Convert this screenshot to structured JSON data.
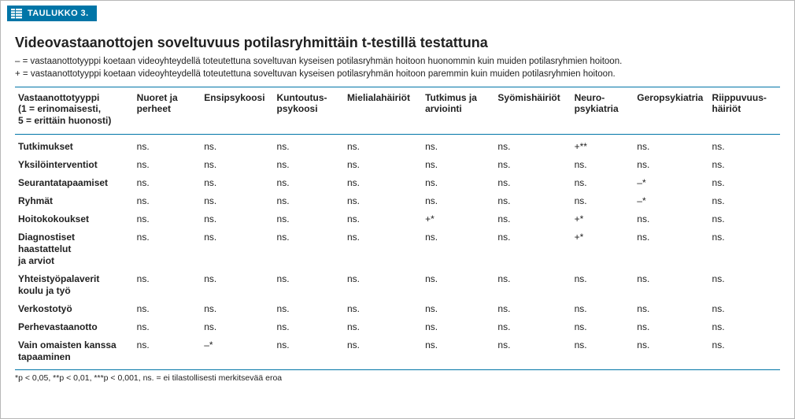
{
  "colors": {
    "brand": "#0075a7",
    "text": "#222222",
    "border": "#b8b8b8",
    "background": "#ffffff"
  },
  "badge": {
    "label": "TAULUKKO 3."
  },
  "title": "Videovastaanottojen soveltuvuus potilasryhmittäin t-testillä testattuna",
  "legend": {
    "minus": "– = vastaanottotyyppi koetaan videoyhteydellä toteutettuna soveltuvan kyseisen potilasryhmän hoitoon huonommin kuin muiden potilasryhmien hoitoon.",
    "plus": "+ = vastaanottotyyppi koetaan videoyhteydellä toteutettuna soveltuvan kyseisen potilasryhmän hoitoon paremmin kuin muiden potilasryhmien hoitoon."
  },
  "table": {
    "columns": [
      "Vastaanottotyyppi\n(1 = erinomaisesti,\n5 = erittäin huonosti)",
      "Nuoret ja\nperheet",
      "Ensipsykoosi",
      "Kuntoutus-\npsykoosi",
      "Mielialahäiriöt",
      "Tutkimus ja\narviointi",
      "Syömishäiriöt",
      "Neuro-\npsykiatria",
      "Geropsykiatria",
      "Riippuvuus-\nhäiriöt"
    ],
    "rows": [
      {
        "label": "Tutkimukset",
        "cells": [
          "ns.",
          "ns.",
          "ns.",
          "ns.",
          "ns.",
          "ns.",
          "+**",
          "ns.",
          "ns."
        ]
      },
      {
        "label": "Yksilöinterventiot",
        "cells": [
          "ns.",
          "ns.",
          "ns.",
          "ns.",
          "ns.",
          "ns.",
          "ns.",
          "ns.",
          "ns."
        ]
      },
      {
        "label": "Seurantatapaamiset",
        "cells": [
          "ns.",
          "ns.",
          "ns.",
          "ns.",
          "ns.",
          "ns.",
          "ns.",
          "–*",
          "ns."
        ]
      },
      {
        "label": "Ryhmät",
        "cells": [
          "ns.",
          "ns.",
          "ns.",
          "ns.",
          "ns.",
          "ns.",
          "ns.",
          "–*",
          "ns."
        ]
      },
      {
        "label": "Hoitokokoukset",
        "cells": [
          "ns.",
          "ns.",
          "ns.",
          "ns.",
          "+*",
          "ns.",
          "+*",
          "ns.",
          "ns."
        ]
      },
      {
        "label": "Diagnostiset haastattelut\nja arviot",
        "cells": [
          "ns.",
          "ns.",
          "ns.",
          "ns.",
          "ns.",
          "ns.",
          "+*",
          "ns.",
          "ns."
        ]
      },
      {
        "label": "Yhteistyöpalaverit\nkoulu ja työ",
        "cells": [
          "ns.",
          "ns.",
          "ns.",
          "ns.",
          "ns.",
          "ns.",
          "ns.",
          "ns.",
          "ns."
        ]
      },
      {
        "label": "Verkostotyö",
        "cells": [
          "ns.",
          "ns.",
          "ns.",
          "ns.",
          "ns.",
          "ns.",
          "ns.",
          "ns.",
          "ns."
        ]
      },
      {
        "label": "Perhevastaanotto",
        "cells": [
          "ns.",
          "ns.",
          "ns.",
          "ns.",
          "ns.",
          "ns.",
          "ns.",
          "ns.",
          "ns."
        ]
      },
      {
        "label": "Vain omaisten kanssa\ntapaaminen",
        "cells": [
          "ns.",
          "–*",
          "ns.",
          "ns.",
          "ns.",
          "ns.",
          "ns.",
          "ns.",
          "ns."
        ]
      }
    ]
  },
  "footnote": "*p < 0,05, **p < 0,01, ***p < 0,001, ns. = ei tilastollisesti merkitsevää eroa"
}
